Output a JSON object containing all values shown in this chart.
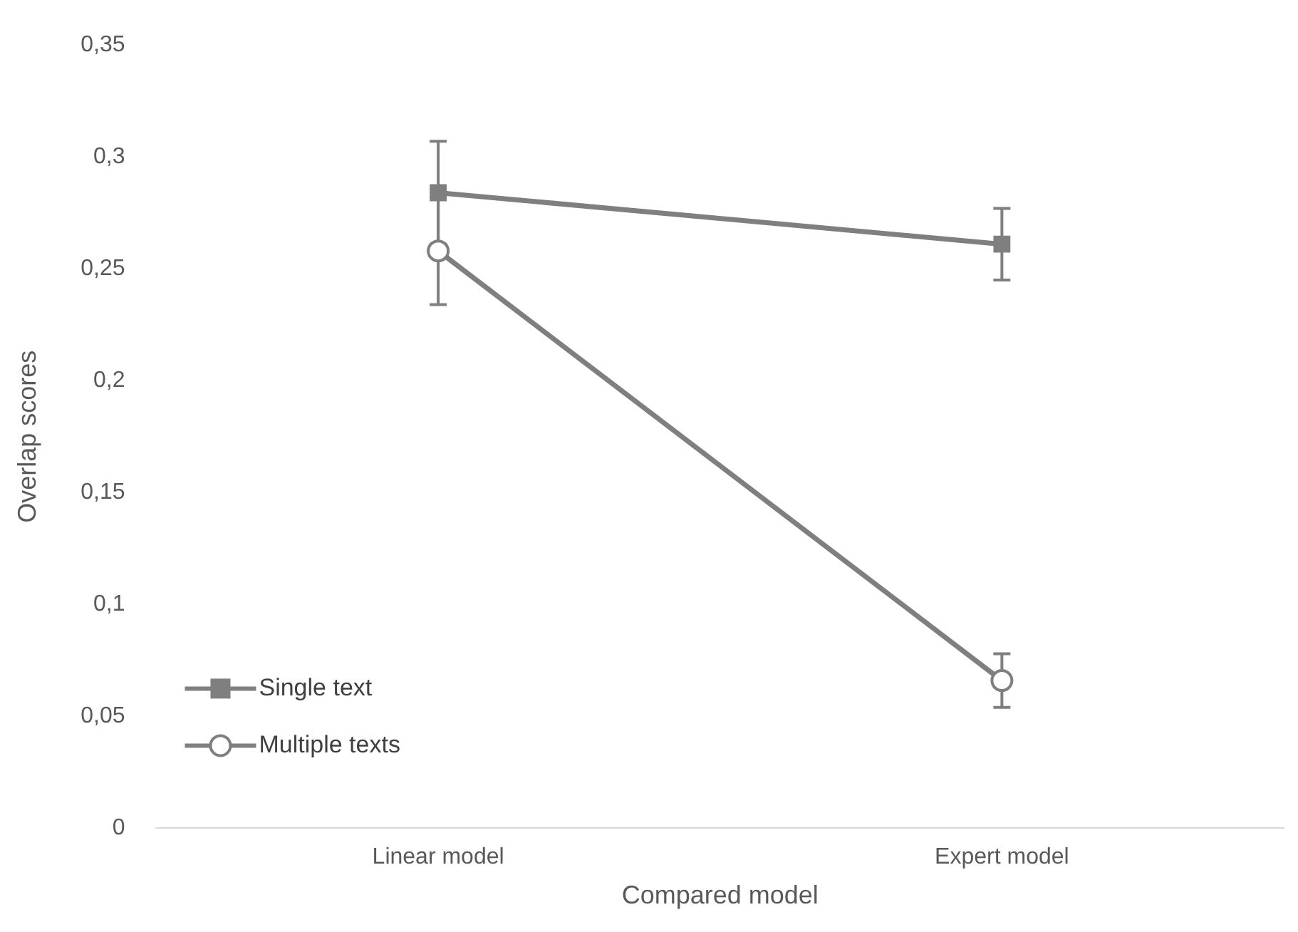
{
  "chart_data": {
    "type": "line",
    "xlabel": "Compared model",
    "ylabel": "Overlap scores",
    "categories": [
      "Linear model",
      "Expert model"
    ],
    "series": [
      {
        "name": "Single text",
        "color": "#7f7f7f",
        "marker": "square",
        "values": [
          0.284,
          0.261
        ],
        "errors": [
          0.023,
          0.016
        ]
      },
      {
        "name": "Multiple texts",
        "color": "#7f7f7f",
        "marker": "circle",
        "values": [
          0.258,
          0.066
        ],
        "errors": [
          0.024,
          0.012
        ]
      }
    ],
    "ylim": [
      0,
      0.35
    ],
    "yticks": [
      {
        "value": 0,
        "label": "0"
      },
      {
        "value": 0.05,
        "label": "0,05"
      },
      {
        "value": 0.1,
        "label": "0,1"
      },
      {
        "value": 0.15,
        "label": "0,15"
      },
      {
        "value": 0.2,
        "label": "0,2"
      },
      {
        "value": 0.25,
        "label": "0,25"
      },
      {
        "value": 0.3,
        "label": "0,3"
      },
      {
        "value": 0.35,
        "label": "0,35"
      }
    ],
    "grid": false,
    "legend": "bottom left"
  }
}
